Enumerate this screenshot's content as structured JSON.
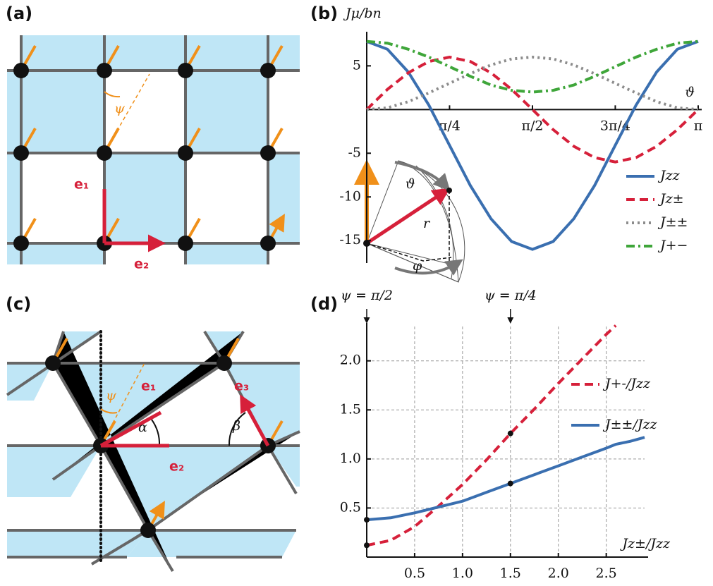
{
  "panel_labels": [
    "(a)",
    "(b)",
    "(c)",
    "(d)"
  ],
  "diagram_a": {
    "angle": "ψ",
    "e1": "e₁",
    "e2": "e₂"
  },
  "inset_b": {
    "theta": "ϑ",
    "r": "r",
    "phi": "φ"
  },
  "diagram_c": {
    "angle": "ψ",
    "e1": "e₁",
    "e2": "e₂",
    "e3": "e₃",
    "alpha": "α",
    "beta": "β"
  },
  "chart_data": [
    {
      "type": "line",
      "y_label": "Jμ/bn",
      "x_label": "ϑ",
      "x": [
        0,
        0.196,
        0.393,
        0.589,
        0.785,
        0.982,
        1.178,
        1.374,
        1.571,
        1.767,
        1.963,
        2.16,
        2.356,
        2.553,
        2.749,
        2.945,
        3.142
      ],
      "xlim": [
        0,
        3.142
      ],
      "ylim": [
        -17,
        8.5
      ],
      "xticks": [
        {
          "value": 0.785,
          "label": "π/4"
        },
        {
          "value": 1.571,
          "label": "π/2"
        },
        {
          "value": 2.356,
          "label": "3π/4"
        },
        {
          "value": 3.142,
          "label": "π"
        }
      ],
      "yticks": [
        -15,
        -10,
        -5,
        5
      ],
      "grid": false,
      "series": [
        {
          "name": "Jzz",
          "color": "#3a6fb0",
          "dash": "solid",
          "values": [
            7.8,
            6.9,
            4.3,
            0.5,
            -4.1,
            -8.7,
            -12.5,
            -15.1,
            -16.0,
            -15.1,
            -12.5,
            -8.7,
            -4.1,
            0.5,
            4.3,
            6.9,
            7.8
          ]
        },
        {
          "name": "Jz±",
          "color": "#d6203a",
          "dash": "dashed",
          "values": [
            0,
            2.3,
            4.2,
            5.5,
            6,
            5.5,
            4.2,
            2.3,
            0,
            -2.3,
            -4.2,
            -5.5,
            -6,
            -5.5,
            -4.2,
            -2.3,
            0
          ]
        },
        {
          "name": "J±±",
          "color": "#8c8c8c",
          "dash": "dotted",
          "values": [
            0,
            0.2,
            0.9,
            1.9,
            3,
            4.1,
            5.1,
            5.8,
            6,
            5.8,
            5.1,
            4.1,
            3,
            1.9,
            0.9,
            0.2,
            0
          ]
        },
        {
          "name": "J+−",
          "color": "#3fa63a",
          "dash": "dashdot",
          "values": [
            7.8,
            7.6,
            6.9,
            6.0,
            4.9,
            3.8,
            2.8,
            2.2,
            2.0,
            2.2,
            2.8,
            3.8,
            4.9,
            6.0,
            6.9,
            7.6,
            7.8
          ]
        }
      ]
    },
    {
      "type": "line",
      "x_label": "Jz±/Jzz",
      "x": [
        0,
        0.25,
        0.5,
        0.75,
        1,
        1.25,
        1.5,
        1.75,
        2,
        2.25,
        2.5,
        2.6,
        2.75,
        2.9
      ],
      "xlim": [
        0,
        2.9
      ],
      "ylim": [
        0.05,
        2.35
      ],
      "xticks": [
        0.5,
        {
          "value": 1,
          "label": "1.0"
        },
        1.5,
        {
          "value": 2,
          "label": "2.0"
        },
        2.5
      ],
      "yticks": [
        0.5,
        {
          "value": 1,
          "label": "1.0"
        },
        1.5,
        {
          "value": 2,
          "label": "2.0"
        }
      ],
      "grid": true,
      "marker_x": [
        0,
        1.5
      ],
      "annotations": [
        {
          "x": 0,
          "text": "ψ = π/2"
        },
        {
          "x": 1.5,
          "text": "ψ = π/4"
        }
      ],
      "series": [
        {
          "name": "J+-/Jzz",
          "color": "#d6203a",
          "dash": "dashed",
          "values": [
            0.12,
            0.17,
            0.31,
            0.52,
            0.74,
            0.99,
            1.26,
            1.51,
            1.77,
            2.02,
            2.27,
            2.36,
            null,
            null
          ]
        },
        {
          "name": "J±±/Jzz",
          "color": "#3a6fb0",
          "dash": "solid",
          "values": [
            0.38,
            0.4,
            0.45,
            0.51,
            0.57,
            0.66,
            0.75,
            0.84,
            0.93,
            1.02,
            1.11,
            1.15,
            1.18,
            1.22
          ]
        }
      ]
    }
  ]
}
